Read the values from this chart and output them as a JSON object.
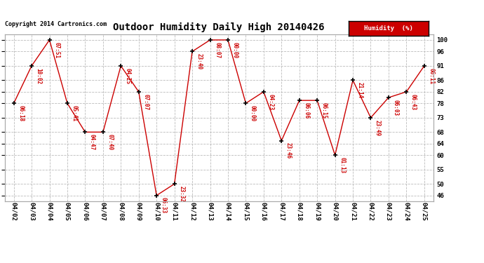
{
  "title": "Outdoor Humidity Daily High 20140426",
  "copyright": "Copyright 2014 Cartronics.com",
  "legend_label": "Humidity  (%)",
  "yticks": [
    100,
    96,
    91,
    86,
    82,
    78,
    73,
    68,
    64,
    60,
    55,
    50,
    46
  ],
  "ylim": [
    44,
    102
  ],
  "dates": [
    "04/02",
    "04/03",
    "04/04",
    "04/05",
    "04/06",
    "04/07",
    "04/08",
    "04/09",
    "04/10",
    "04/11",
    "04/12",
    "04/13",
    "04/14",
    "04/15",
    "04/16",
    "04/17",
    "04/18",
    "04/19",
    "04/20",
    "04/21",
    "04/22",
    "04/23",
    "04/24",
    "04/25"
  ],
  "values": [
    78,
    91,
    100,
    78,
    68,
    68,
    91,
    82,
    46,
    50,
    96,
    100,
    100,
    78,
    82,
    65,
    79,
    79,
    60,
    86,
    73,
    80,
    82,
    91
  ],
  "labels": [
    "06:18",
    "10:02",
    "07:51",
    "05:41",
    "04:47",
    "07:40",
    "04:25",
    "07:07",
    "06:33",
    "23:32",
    "23:40",
    "08:07",
    "00:00",
    "00:00",
    "04:23",
    "23:46",
    "06:06",
    "06:15",
    "01:13",
    "21:14",
    "23:49",
    "06:03",
    "06:43",
    "06:11"
  ],
  "line_color": "#cc0000",
  "marker_color": "#000000",
  "label_color": "#cc0000",
  "bg_color": "#ffffff",
  "grid_color": "#bbbbbb",
  "title_color": "#000000",
  "copyright_color": "#000000",
  "legend_bg": "#cc0000",
  "legend_text_color": "#ffffff"
}
